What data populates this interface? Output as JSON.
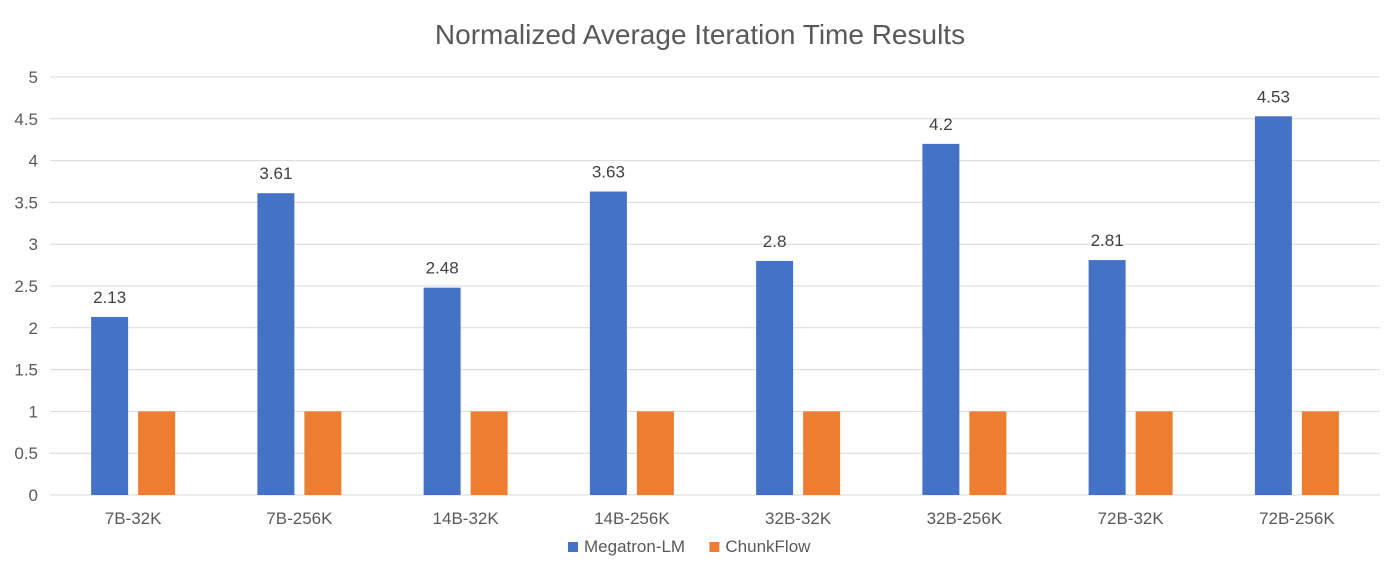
{
  "chart_data": {
    "type": "bar",
    "title": "Normalized Average Iteration Time Results",
    "xlabel": "",
    "ylabel": "",
    "ylim": [
      0,
      5
    ],
    "yticks": [
      0,
      0.5,
      1,
      1.5,
      2,
      2.5,
      3,
      3.5,
      4,
      4.5,
      5
    ],
    "grid": true,
    "legend_position": "bottom",
    "categories": [
      "7B-32K",
      "7B-256K",
      "14B-32K",
      "14B-256K",
      "32B-32K",
      "32B-256K",
      "72B-32K",
      "72B-256K"
    ],
    "series": [
      {
        "name": "Megatron-LM",
        "color": "#4472c4",
        "values": [
          2.13,
          3.61,
          2.48,
          3.63,
          2.8,
          4.2,
          2.81,
          4.53
        ],
        "show_labels": true
      },
      {
        "name": "ChunkFlow",
        "color": "#ed7d31",
        "values": [
          1,
          1,
          1,
          1,
          1,
          1,
          1,
          1
        ],
        "show_labels": false
      }
    ]
  }
}
